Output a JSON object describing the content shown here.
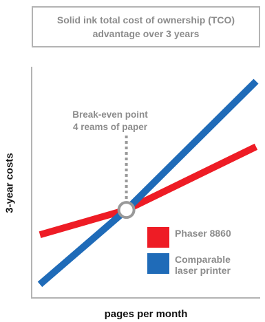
{
  "chart_data": {
    "type": "line",
    "title": "Solid ink total cost of ownership (TCO) advantage over 3 years",
    "xlabel": "pages per month",
    "ylabel": "3-year costs",
    "x_ticks": [],
    "y_ticks": [],
    "grid": false,
    "legend_position": "bottom-right",
    "series": [
      {
        "name": "Phaser 8860",
        "color": "#ee1c25",
        "x": [
          0,
          4,
          10
        ],
        "y": [
          2.8,
          3.9,
          6.7
        ]
      },
      {
        "name": "Comparable laser printer",
        "color": "#1f6bb8",
        "x": [
          0,
          4,
          10
        ],
        "y": [
          0.6,
          3.9,
          9.6
        ]
      }
    ],
    "annotations": [
      {
        "type": "point-callout",
        "lines": [
          "Break-even point",
          "4 reams of paper"
        ],
        "x": 4,
        "y": 3.9
      }
    ],
    "xlim": [
      0,
      10
    ],
    "ylim": [
      0,
      10
    ]
  }
}
